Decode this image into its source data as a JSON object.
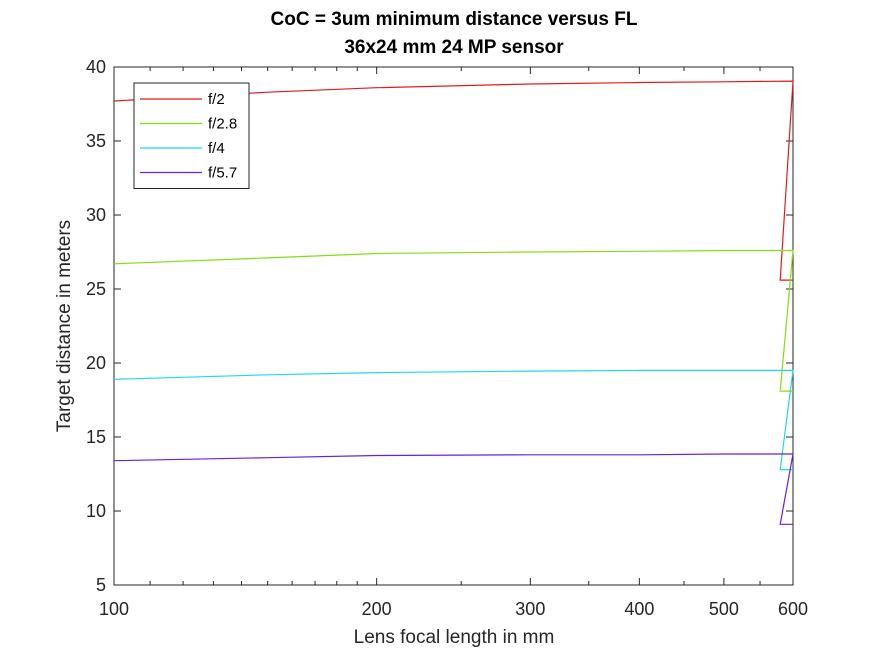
{
  "chart_data": {
    "type": "line",
    "title": "CoC = 3um minimum distance versus FL",
    "subtitle": "36x24 mm 24 MP sensor",
    "xlabel": "Lens focal length in mm",
    "ylabel": "Target distance in meters",
    "xscale": "log",
    "xlim": [
      100,
      600
    ],
    "ylim": [
      5,
      40
    ],
    "xticks": [
      100,
      200,
      300,
      400,
      500,
      600
    ],
    "yticks": [
      5,
      10,
      15,
      20,
      25,
      30,
      35,
      40
    ],
    "grid": false,
    "legend_position": "top-left",
    "series": [
      {
        "name": "f/2",
        "color": "#e41a1c",
        "x": [
          100,
          150,
          200,
          300,
          400,
          500,
          600,
          580,
          600
        ],
        "y": [
          37.7,
          38.3,
          38.6,
          38.85,
          38.95,
          39.0,
          39.05,
          25.6,
          25.6
        ]
      },
      {
        "name": "f/2.8",
        "color": "#80e010",
        "x": [
          100,
          150,
          200,
          300,
          400,
          500,
          600,
          580,
          600
        ],
        "y": [
          26.7,
          27.1,
          27.4,
          27.5,
          27.55,
          27.6,
          27.6,
          18.1,
          18.1
        ]
      },
      {
        "name": "f/4",
        "color": "#1ed8f0",
        "x": [
          100,
          150,
          200,
          300,
          400,
          500,
          600,
          580,
          600
        ],
        "y": [
          18.9,
          19.2,
          19.35,
          19.45,
          19.5,
          19.5,
          19.5,
          12.8,
          12.8
        ]
      },
      {
        "name": "f/5.7",
        "color": "#6a1ee8",
        "x": [
          100,
          150,
          200,
          300,
          400,
          500,
          600,
          580,
          600
        ],
        "y": [
          13.4,
          13.6,
          13.75,
          13.8,
          13.8,
          13.85,
          13.85,
          9.1,
          9.1
        ]
      }
    ]
  }
}
